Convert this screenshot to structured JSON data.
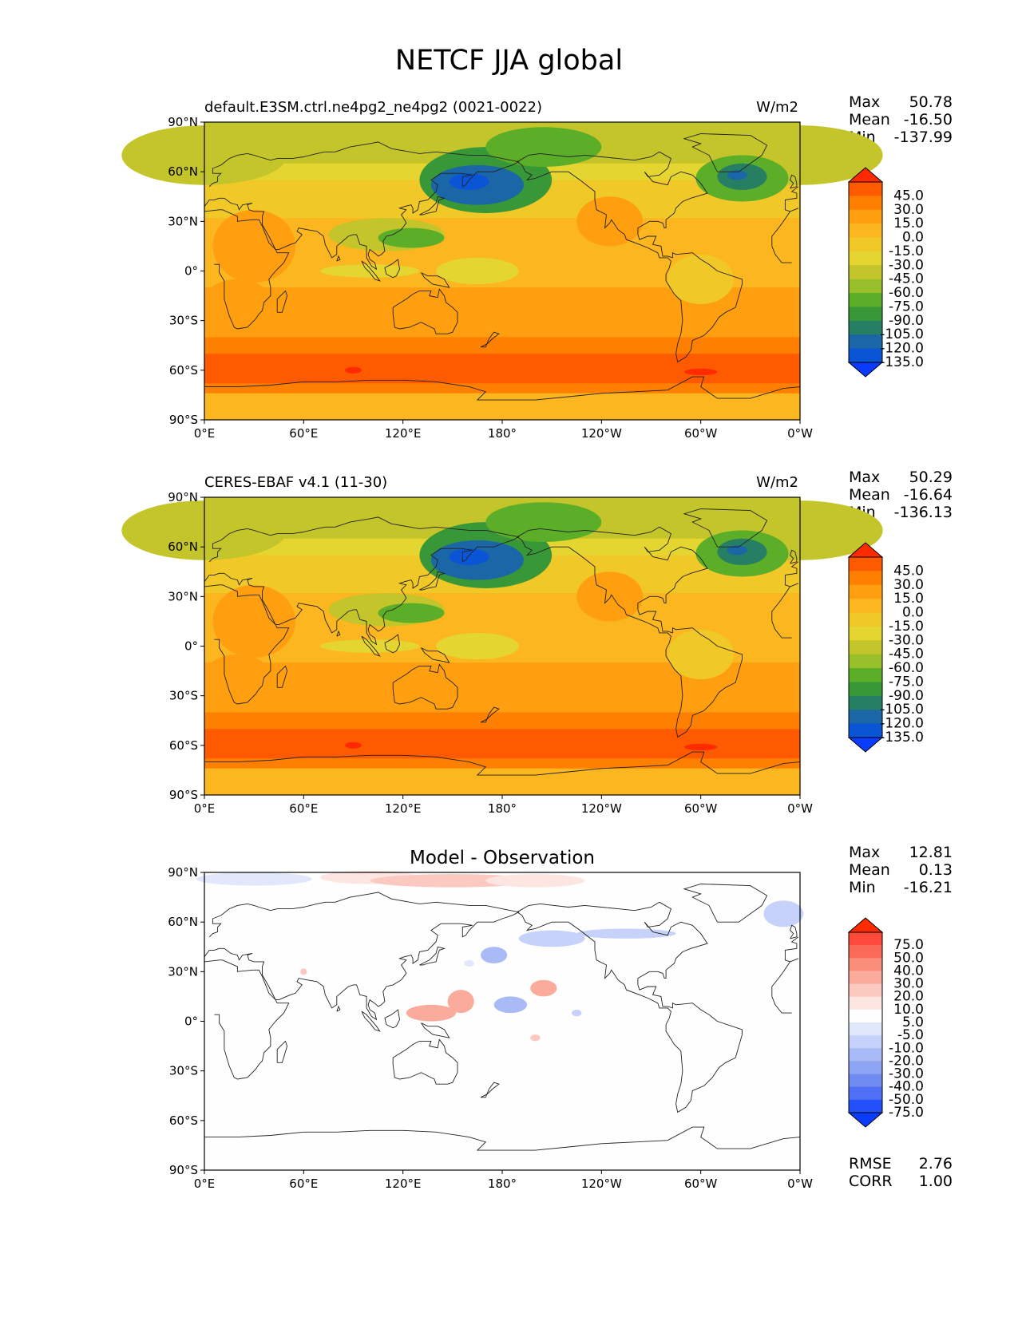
{
  "figure_title": "NETCF JJA global",
  "panels": [
    {
      "subtitle_left": "default.E3SM.ctrl.ne4pg2_ne4pg2 (0021-0022)",
      "subtitle_right": "W/m2",
      "subtitle_center": "",
      "stats": [
        {
          "label": "Max",
          "value": "50.78"
        },
        {
          "label": "Mean",
          "value": "-16.50"
        },
        {
          "label": "Min",
          "value": "-137.99"
        }
      ]
    },
    {
      "subtitle_left": "CERES-EBAF v4.1 (11-30)",
      "subtitle_right": "W/m2",
      "subtitle_center": "",
      "stats": [
        {
          "label": "Max",
          "value": "50.29"
        },
        {
          "label": "Mean",
          "value": "-16.64"
        },
        {
          "label": "Min",
          "value": "-136.13"
        }
      ]
    },
    {
      "subtitle_left": "",
      "subtitle_right": "",
      "subtitle_center": "Model - Observation",
      "stats": [
        {
          "label": "Max",
          "value": "12.81"
        },
        {
          "label": "Mean",
          "value": "0.13"
        },
        {
          "label": "Min",
          "value": "-16.21"
        }
      ]
    }
  ],
  "diff_stats": [
    {
      "label": "RMSE",
      "value": "2.76"
    },
    {
      "label": "CORR",
      "value": "1.00"
    }
  ],
  "chart_data": [
    {
      "type": "heatmap",
      "title": "default.E3SM.ctrl.ne4pg2_ne4pg2 (0021-0022)",
      "units": "W/m2",
      "x_ticks": [
        "0°E",
        "60°E",
        "120°E",
        "180°",
        "120°W",
        "60°W",
        "0°W"
      ],
      "y_ticks": [
        "90°N",
        "60°N",
        "30°N",
        "0°",
        "30°S",
        "60°S",
        "90°S"
      ],
      "xlim": [
        0,
        360
      ],
      "ylim": [
        -90,
        90
      ],
      "colorbar": {
        "levels": [
          "45.0",
          "30.0",
          "15.0",
          "0.0",
          "-15.0",
          "-30.0",
          "-45.0",
          "-60.0",
          "-75.0",
          "-90.0",
          "-105.0",
          "-120.0",
          "-135.0"
        ],
        "colors": [
          "#ff2a00",
          "#ff5a00",
          "#ff7f00",
          "#ff9f0f",
          "#fbb620",
          "#f0c828",
          "#e4d530",
          "#c4c52a",
          "#98c02a",
          "#5cad28",
          "#389838",
          "#277f63",
          "#1a66a6",
          "#0a55d6",
          "#0a3cff"
        ],
        "extend": "both"
      },
      "stats": {
        "max": 50.78,
        "mean": -16.5,
        "min": -137.99
      }
    },
    {
      "type": "heatmap",
      "title": "CERES-EBAF v4.1 (11-30)",
      "units": "W/m2",
      "x_ticks": [
        "0°E",
        "60°E",
        "120°E",
        "180°",
        "120°W",
        "60°W",
        "0°W"
      ],
      "y_ticks": [
        "90°N",
        "60°N",
        "30°N",
        "0°",
        "30°S",
        "60°S",
        "90°S"
      ],
      "xlim": [
        0,
        360
      ],
      "ylim": [
        -90,
        90
      ],
      "colorbar": {
        "levels": [
          "45.0",
          "30.0",
          "15.0",
          "0.0",
          "-15.0",
          "-30.0",
          "-45.0",
          "-60.0",
          "-75.0",
          "-90.0",
          "-105.0",
          "-120.0",
          "-135.0"
        ],
        "colors": [
          "#ff2a00",
          "#ff5a00",
          "#ff7f00",
          "#ff9f0f",
          "#fbb620",
          "#f0c828",
          "#e4d530",
          "#c4c52a",
          "#98c02a",
          "#5cad28",
          "#389838",
          "#277f63",
          "#1a66a6",
          "#0a55d6",
          "#0a3cff"
        ],
        "extend": "both"
      },
      "stats": {
        "max": 50.29,
        "mean": -16.64,
        "min": -136.13
      }
    },
    {
      "type": "heatmap",
      "title": "Model - Observation",
      "units": "",
      "x_ticks": [
        "0°E",
        "60°E",
        "120°E",
        "180°",
        "120°W",
        "60°W",
        "0°W"
      ],
      "y_ticks": [
        "90°N",
        "60°N",
        "30°N",
        "0°",
        "30°S",
        "60°S",
        "90°S"
      ],
      "xlim": [
        0,
        360
      ],
      "ylim": [
        -90,
        90
      ],
      "colorbar": {
        "levels": [
          "75.0",
          "50.0",
          "40.0",
          "30.0",
          "20.0",
          "10.0",
          "5.0",
          "-5.0",
          "-10.0",
          "-20.0",
          "-30.0",
          "-40.0",
          "-50.0",
          "-75.0"
        ],
        "colors": [
          "#ff2a00",
          "#fe4a3a",
          "#fb6a58",
          "#fb8e7a",
          "#fbab9c",
          "#fbc9bf",
          "#fde6e2",
          "#fefefe",
          "#e2e8fc",
          "#c6d2fa",
          "#a9bbf6",
          "#8ea5f3",
          "#718cf0",
          "#4f6ff5",
          "#2450fb",
          "#0a3cff"
        ],
        "extend": "both"
      },
      "stats": {
        "max": 12.81,
        "mean": 0.13,
        "min": -16.21,
        "rmse": 2.76,
        "corr": 1.0
      }
    }
  ]
}
